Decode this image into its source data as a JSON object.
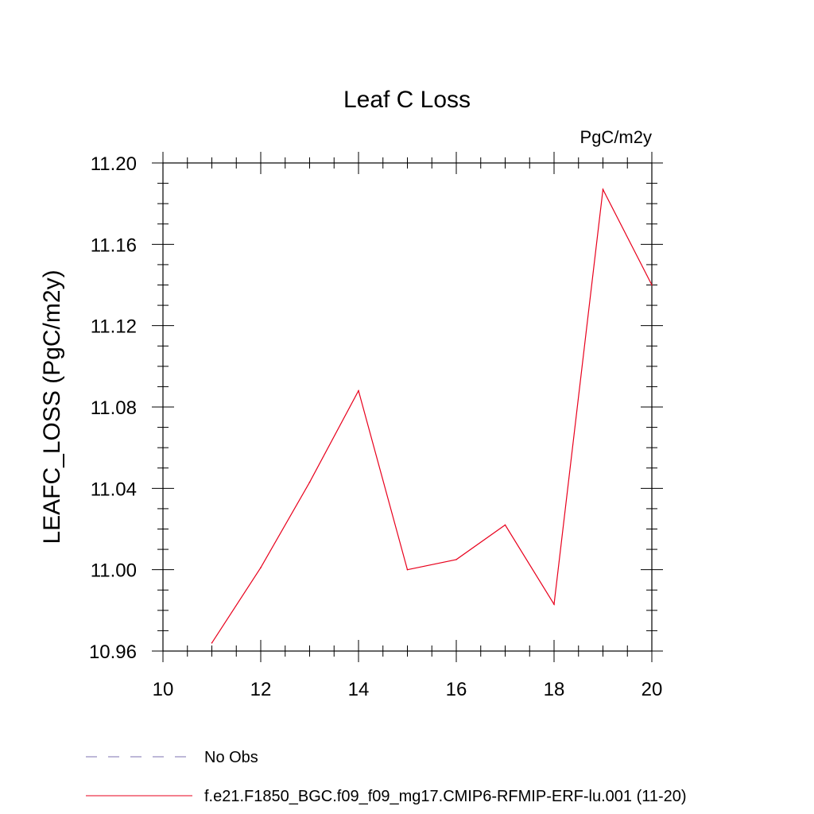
{
  "chart_data": {
    "type": "line",
    "title": "Leaf C Loss",
    "units": "PgC/m2y",
    "ylabel": "LEAFC_LOSS  (PgC/m2y)",
    "xlabel": "",
    "xlim": [
      10,
      20
    ],
    "ylim": [
      10.96,
      11.2
    ],
    "x_ticks": [
      "10",
      "12",
      "14",
      "16",
      "18",
      "20"
    ],
    "y_ticks": [
      "10.96",
      "11.00",
      "11.04",
      "11.08",
      "11.12",
      "11.16",
      "11.20"
    ],
    "grid": false,
    "legend_position": "bottom-left",
    "series": [
      {
        "name": "f.e21.F1850_BGC.f09_f09_mg17.CMIP6-RFMIP-ERF-lu.001 (11-20)",
        "color": "#e8001c",
        "style": "solid",
        "x": [
          11,
          12,
          13,
          14,
          15,
          16,
          17,
          18,
          19,
          20
        ],
        "y": [
          10.964,
          11.001,
          11.043,
          11.088,
          11.0,
          11.005,
          11.022,
          10.983,
          11.187,
          11.14
        ]
      }
    ],
    "legend": [
      {
        "label": "No Obs",
        "color": "#7c72b0",
        "style": "dashed"
      },
      {
        "label": "f.e21.F1850_BGC.f09_f09_mg17.CMIP6-RFMIP-ERF-lu.001 (11-20)",
        "color": "#e8001c",
        "style": "solid"
      }
    ]
  }
}
